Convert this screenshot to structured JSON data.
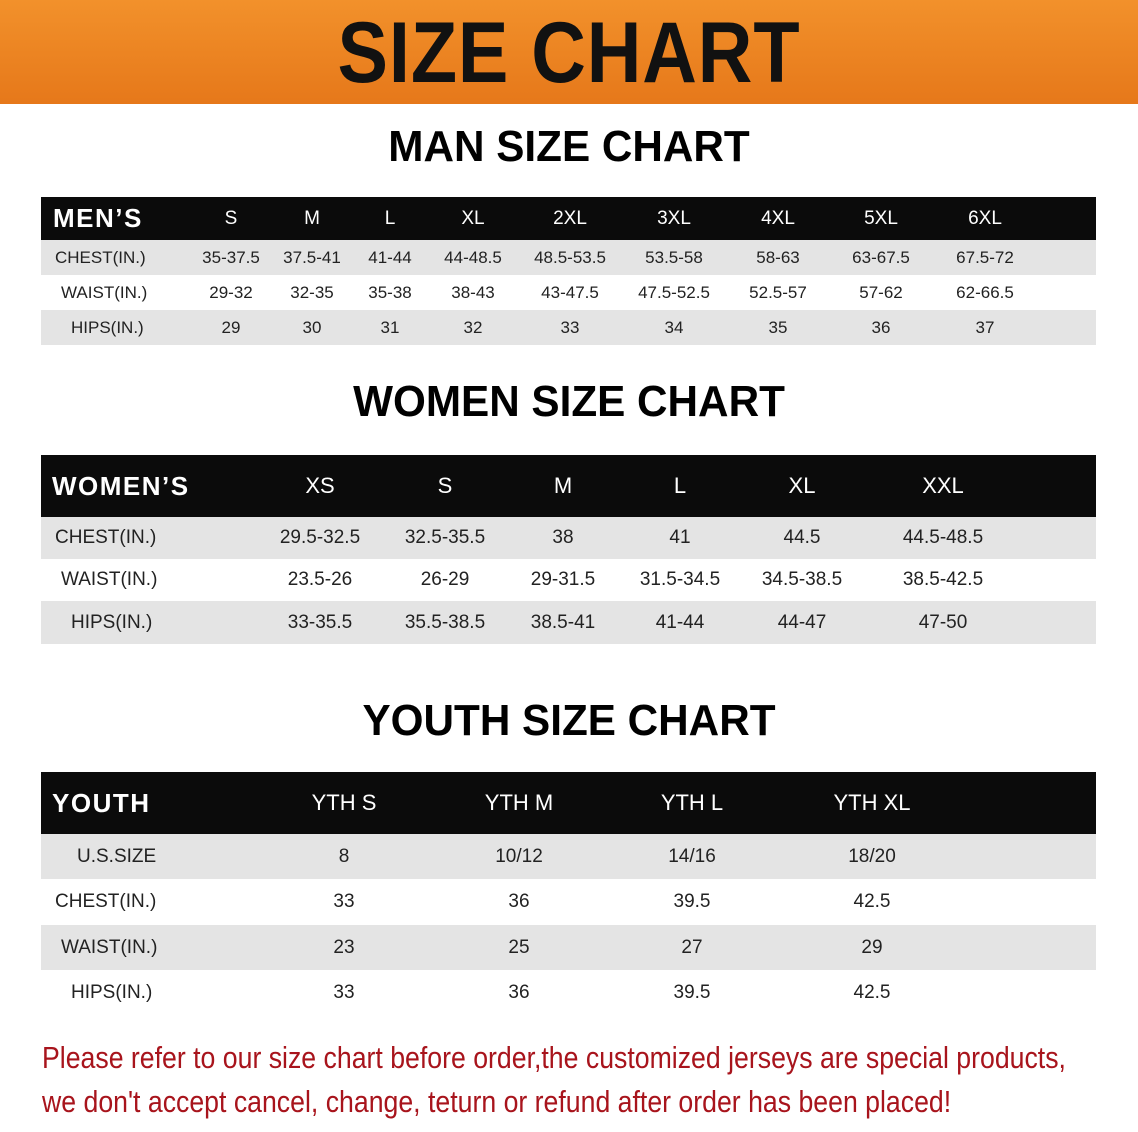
{
  "title": "SIZE CHART",
  "colors": {
    "banner": "#ee8622",
    "header_row": "#0b0b0b",
    "stripe": "#e4e4e4",
    "note": "#a8141c"
  },
  "men": {
    "title": "MAN SIZE CHART",
    "header": [
      "MEN’S",
      "S",
      "M",
      "L",
      "XL",
      "2XL",
      "3XL",
      "4XL",
      "5XL",
      "6XL"
    ],
    "rows": [
      [
        "CHEST(IN.)",
        "35-37.5",
        "37.5-41",
        "41-44",
        "44-48.5",
        "48.5-53.5",
        "53.5-58",
        "58-63",
        "63-67.5",
        "67.5-72"
      ],
      [
        "WAIST(IN.)",
        "29-32",
        "32-35",
        "35-38",
        "38-43",
        "43-47.5",
        "47.5-52.5",
        "52.5-57",
        "57-62",
        "62-66.5"
      ],
      [
        "HIPS(IN.)",
        "29",
        "30",
        "31",
        "32",
        "33",
        "34",
        "35",
        "36",
        "37"
      ]
    ]
  },
  "women": {
    "title": "WOMEN SIZE CHART",
    "header": [
      "WOMEN’S",
      "XS",
      "S",
      "M",
      "L",
      "XL",
      "XXL"
    ],
    "rows": [
      [
        "CHEST(IN.)",
        "29.5-32.5",
        "32.5-35.5",
        "38",
        "41",
        "44.5",
        "44.5-48.5"
      ],
      [
        "WAIST(IN.)",
        "23.5-26",
        "26-29",
        "29-31.5",
        "31.5-34.5",
        "34.5-38.5",
        "38.5-42.5"
      ],
      [
        "HIPS(IN.)",
        "33-35.5",
        "35.5-38.5",
        "38.5-41",
        "41-44",
        "44-47",
        "47-50"
      ]
    ]
  },
  "youth": {
    "title": "YOUTH SIZE CHART",
    "header": [
      "YOUTH",
      "YTH S",
      "YTH M",
      "YTH L",
      "YTH XL"
    ],
    "rows": [
      [
        "U.S.SIZE",
        "8",
        "10/12",
        "14/16",
        "18/20"
      ],
      [
        "CHEST(IN.)",
        "33",
        "36",
        "39.5",
        "42.5"
      ],
      [
        "WAIST(IN.)",
        "23",
        "25",
        "27",
        "29"
      ],
      [
        "HIPS(IN.)",
        "33",
        "36",
        "39.5",
        "42.5"
      ]
    ]
  },
  "note": {
    "line1": "Please refer to our size chart before order,the customized jerseys are special products,",
    "line2": "we don't accept cancel, change, teturn or refund after order has been placed!"
  }
}
